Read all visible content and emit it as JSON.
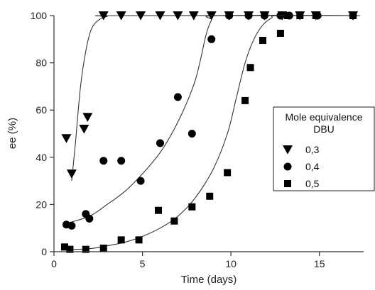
{
  "chart_data": {
    "type": "scatter",
    "xlabel": "Time (days)",
    "ylabel": "ee (%)",
    "xlim": [
      0,
      17.5
    ],
    "ylim": [
      0,
      100
    ],
    "xticks": [
      0,
      5,
      10,
      15
    ],
    "yticks": [
      0,
      20,
      40,
      60,
      80,
      100
    ],
    "grid": false,
    "legend": {
      "title_line1": "Mole equivalence",
      "title_line2": "DBU",
      "placement": "center-right"
    },
    "series": [
      {
        "name": "0,3",
        "marker": "triangle-down",
        "points": [
          [
            0.7,
            48
          ],
          [
            1.0,
            33
          ],
          [
            1.7,
            52
          ],
          [
            1.9,
            57
          ],
          [
            2.8,
            100
          ],
          [
            3.8,
            100
          ],
          [
            4.9,
            100
          ],
          [
            6.0,
            100
          ],
          [
            7.0,
            100
          ],
          [
            7.9,
            100
          ],
          [
            8.9,
            100
          ],
          [
            9.9,
            100
          ],
          [
            11.0,
            100
          ],
          [
            11.9,
            100
          ],
          [
            12.9,
            100
          ],
          [
            13.9,
            100
          ],
          [
            14.8,
            100
          ],
          [
            16.9,
            100
          ]
        ],
        "curve": [
          [
            1.0,
            30
          ],
          [
            1.2,
            45
          ],
          [
            1.5,
            70
          ],
          [
            1.8,
            85
          ],
          [
            2.1,
            94
          ],
          [
            2.5,
            98
          ],
          [
            3.0,
            99.6
          ],
          [
            3.5,
            100
          ],
          [
            17.3,
            100
          ]
        ]
      },
      {
        "name": "0,4",
        "marker": "circle",
        "points": [
          [
            0.7,
            11.5
          ],
          [
            1.0,
            11
          ],
          [
            1.8,
            16
          ],
          [
            2.0,
            14
          ],
          [
            2.8,
            38.5
          ],
          [
            3.8,
            38.5
          ],
          [
            4.9,
            30
          ],
          [
            6.0,
            46
          ],
          [
            7.0,
            65.5
          ],
          [
            7.8,
            50
          ],
          [
            8.9,
            90
          ],
          [
            9.9,
            100
          ],
          [
            11.0,
            100
          ],
          [
            11.9,
            100
          ],
          [
            12.8,
            100
          ],
          [
            13.3,
            100
          ],
          [
            14.9,
            100
          ],
          [
            16.9,
            100
          ]
        ],
        "curve": [
          [
            0.7,
            12
          ],
          [
            2,
            15
          ],
          [
            3,
            20
          ],
          [
            4,
            25.5
          ],
          [
            5,
            33
          ],
          [
            6,
            42
          ],
          [
            6.8,
            52
          ],
          [
            7.5,
            63
          ],
          [
            8,
            73
          ],
          [
            8.3,
            82
          ],
          [
            8.6,
            92
          ],
          [
            8.9,
            98
          ],
          [
            9.3,
            100
          ],
          [
            17.3,
            100
          ]
        ]
      },
      {
        "name": "0,5",
        "marker": "square",
        "points": [
          [
            0.6,
            2
          ],
          [
            0.9,
            1
          ],
          [
            1.8,
            1
          ],
          [
            2.8,
            1.5
          ],
          [
            3.8,
            5
          ],
          [
            4.8,
            5
          ],
          [
            5.9,
            17.5
          ],
          [
            6.8,
            13
          ],
          [
            7.8,
            19
          ],
          [
            8.8,
            23.5
          ],
          [
            9.8,
            33.5
          ],
          [
            10.8,
            64
          ],
          [
            11.1,
            78
          ],
          [
            11.8,
            89.5
          ],
          [
            12.8,
            92.5
          ],
          [
            13.2,
            100
          ],
          [
            13.9,
            100
          ],
          [
            14.8,
            100
          ],
          [
            16.9,
            100
          ]
        ],
        "curve": [
          [
            0.5,
            0.8
          ],
          [
            2,
            1.3
          ],
          [
            3,
            2.5
          ],
          [
            4,
            4
          ],
          [
            5,
            6.5
          ],
          [
            6,
            10
          ],
          [
            7,
            15
          ],
          [
            8,
            23
          ],
          [
            9,
            35
          ],
          [
            9.8,
            50
          ],
          [
            10.3,
            65
          ],
          [
            10.8,
            80
          ],
          [
            11.3,
            90
          ],
          [
            11.8,
            96
          ],
          [
            12.3,
            99
          ],
          [
            12.8,
            100
          ],
          [
            17.3,
            100
          ]
        ]
      }
    ]
  }
}
